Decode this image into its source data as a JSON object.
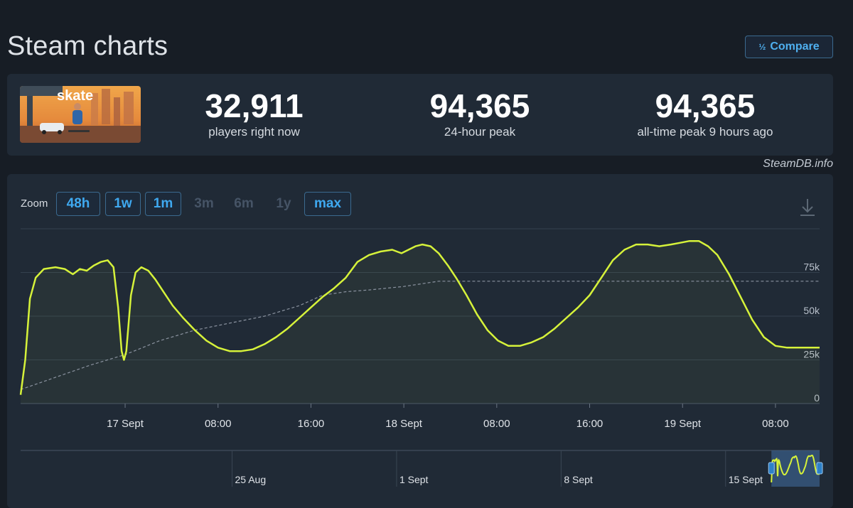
{
  "page": {
    "title": "Steam charts"
  },
  "compare": {
    "label": "Compare",
    "icon": "fraction-icon"
  },
  "game": {
    "logo_text": "skate"
  },
  "stats": [
    {
      "value": "32,911",
      "label": "players right now"
    },
    {
      "value": "94,365",
      "label": "24-hour peak"
    },
    {
      "value": "94,365",
      "label": "all-time peak 9 hours ago"
    }
  ],
  "watermark": "SteamDB.info",
  "zoom": {
    "label": "Zoom",
    "options": [
      {
        "label": "48h",
        "enabled": true
      },
      {
        "label": "1w",
        "enabled": true
      },
      {
        "label": "1m",
        "enabled": true
      },
      {
        "label": "3m",
        "enabled": false
      },
      {
        "label": "6m",
        "enabled": false
      },
      {
        "label": "1y",
        "enabled": false
      },
      {
        "label": "max",
        "enabled": true
      }
    ]
  },
  "colors": {
    "line": "#d6f23a",
    "avg": "#8b93a0",
    "accent": "#3fa9f0"
  },
  "chart_data": {
    "type": "line",
    "x_unit": "hours since 16 Sept 15:00",
    "xlim": [
      0,
      68.8
    ],
    "ylim": [
      0,
      100000
    ],
    "grid": true,
    "x_ticks": [
      {
        "label": "17 Sept",
        "x": 9
      },
      {
        "label": "08:00",
        "x": 17
      },
      {
        "label": "16:00",
        "x": 25
      },
      {
        "label": "18 Sept",
        "x": 33
      },
      {
        "label": "08:00",
        "x": 41
      },
      {
        "label": "16:00",
        "x": 49
      },
      {
        "label": "19 Sept",
        "x": 57
      },
      {
        "label": "08:00",
        "x": 65
      }
    ],
    "y_ticks": [
      {
        "label": "0",
        "value": 0
      },
      {
        "label": "25k",
        "value": 25000
      },
      {
        "label": "50k",
        "value": 50000
      },
      {
        "label": "75k",
        "value": 75000
      }
    ],
    "series": [
      {
        "name": "",
        "x": [
          0,
          0.4,
          0.8,
          1.3,
          2,
          3,
          3.8,
          4.5,
          5.1,
          5.7,
          6.3,
          6.9,
          7.5,
          8,
          8.4,
          8.7,
          8.9,
          9.1,
          9.5,
          9.9,
          10.4,
          11,
          11.6,
          12.3,
          13.1,
          14,
          15,
          16,
          17,
          18,
          19,
          20,
          21,
          22,
          23,
          24,
          25,
          26,
          27,
          28,
          29,
          30,
          31,
          32,
          32.4,
          32.8,
          33.4,
          34,
          34.6,
          35.3,
          36,
          36.8,
          37.5,
          38.4,
          39.3,
          40.2,
          41.1,
          42,
          43,
          44,
          45,
          46,
          47,
          48,
          49,
          50,
          51,
          52,
          53,
          54,
          55,
          56,
          56.8,
          57.6,
          58.4,
          59.2,
          60,
          61,
          62,
          63,
          64,
          65,
          66,
          67,
          68,
          68.8
        ],
        "values": [
          5000,
          25000,
          60000,
          72000,
          77000,
          78000,
          77000,
          74000,
          77000,
          76000,
          79000,
          81000,
          82000,
          78000,
          55000,
          30000,
          25000,
          30000,
          62000,
          75000,
          78000,
          76000,
          71000,
          64000,
          56000,
          49000,
          42000,
          36000,
          32000,
          30000,
          30000,
          31000,
          34000,
          38000,
          43000,
          49000,
          55000,
          61000,
          66000,
          72000,
          81000,
          85000,
          87000,
          88000,
          87000,
          86000,
          88000,
          90000,
          91000,
          90000,
          86000,
          79000,
          72000,
          62000,
          51000,
          42000,
          36000,
          33000,
          33000,
          35000,
          38000,
          43000,
          49000,
          55000,
          62000,
          72000,
          82000,
          88000,
          91000,
          91000,
          90000,
          91000,
          92000,
          93000,
          93000,
          90000,
          85000,
          74000,
          61000,
          48000,
          38000,
          33000,
          32000,
          32000,
          32000,
          32000
        ]
      },
      {
        "name": "",
        "style": "dashed",
        "x": [
          0,
          3,
          6,
          9,
          12,
          15,
          18,
          21,
          24,
          26,
          28,
          30,
          33,
          36,
          40,
          45,
          50,
          55,
          60,
          65,
          68.8
        ],
        "values": [
          8000,
          15000,
          22000,
          28000,
          36000,
          42000,
          46000,
          50000,
          56000,
          62000,
          64000,
          65000,
          67000,
          70000,
          70000,
          70000,
          70000,
          70000,
          70000,
          70000,
          70000
        ]
      }
    ],
    "navigator": {
      "x_unit": "days since 16 Aug",
      "xlim": [
        0,
        34
      ],
      "tick_labels": [
        {
          "label": "25 Aug",
          "x": 9
        },
        {
          "label": "1 Sept",
          "x": 16
        },
        {
          "label": "8 Sept",
          "x": 23
        },
        {
          "label": "15 Sept",
          "x": 30
        }
      ],
      "selected_range": [
        31.95,
        34
      ]
    }
  }
}
